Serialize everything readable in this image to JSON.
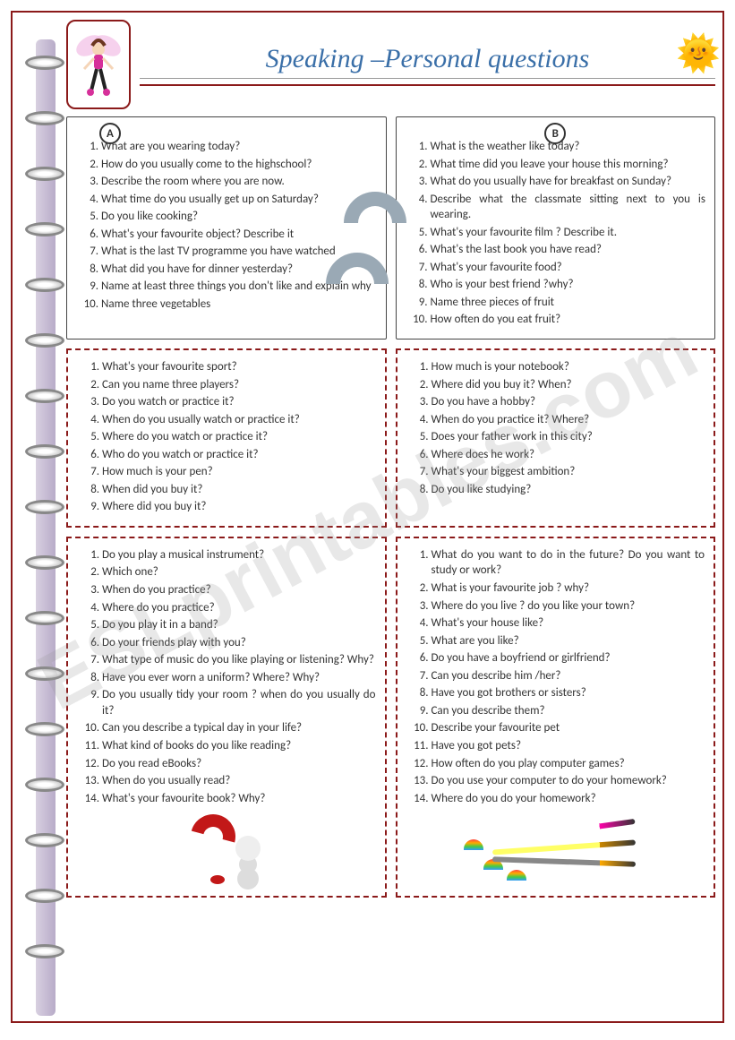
{
  "title": "Speaking –Personal questions",
  "badges": {
    "a": "A",
    "b": "B"
  },
  "watermark": "ESLprintables.com",
  "boxes": {
    "topA": [
      "What are you wearing today?",
      "How do you usually come to the highschool?",
      "Describe the room where you are now.",
      "What time do you usually get up on Saturday?",
      "Do you like cooking?",
      "What's your favourite object? Describe it",
      "What is the last TV programme you have watched",
      "What did you have for dinner yesterday?",
      "Name at least three things you don't like and explain why",
      "Name three vegetables"
    ],
    "topB": [
      "What is the weather like today?",
      "What time did you leave your house this morning?",
      "What do you usually have for breakfast on Sunday?",
      "Describe what the classmate sitting next to you is wearing.",
      "What's your favourite film ? Describe it.",
      "What's the last book you have read?",
      "What's your favourite food?",
      "Who is your best friend ?why?",
      "Name three pieces of fruit",
      "How often do you eat fruit?"
    ],
    "midA": [
      "What's your favourite sport?",
      "Can you name three players?",
      "Do you watch or practice it?",
      "When do you usually watch or practice it?",
      "Where do you watch or practice it?",
      "Who do you watch or practice it?",
      "How much is your pen?",
      "When did you buy it?",
      "Where did you buy it?"
    ],
    "midB": [
      "How much is your notebook?",
      "Where did you buy it? When?",
      "Do you have a hobby?",
      "When do you practice it? Where?",
      "Does your father work in this city?",
      "Where does he work?",
      "What's your biggest ambition?",
      "Do you like studying?"
    ],
    "botA": [
      "Do you play a musical instrument?",
      "Which one?",
      "When do you practice?",
      "Where do you practice?",
      "Do you play it in a band?",
      "Do your friends play with you?",
      "What type of music do you like playing or listening? Why?",
      "Have you ever worn a uniform? Where? Why?",
      "Do you usually tidy your room ? when do you usually do it?",
      "Can you describe a typical day in your life?",
      "What kind of books do you like reading?",
      "Do you read eBooks?",
      "When do you usually read?",
      "What's your favourite book? Why?"
    ],
    "botB": [
      "What do you want to do in the future? Do you want to study or work?",
      "What is your favourite job ? why?",
      "Where do you live ? do you like your town?",
      "What's your house like?",
      "What are you like?",
      "Do you have a boyfriend or girlfriend?",
      "Can you describe him /her?",
      "Have you got brothers or sisters?",
      "Can you describe them?",
      "Describe your favourite pet",
      "Have you got pets?",
      "How often do you play computer games?",
      "Do you use your computer to do your homework?",
      "Where do you do your homework?"
    ]
  }
}
